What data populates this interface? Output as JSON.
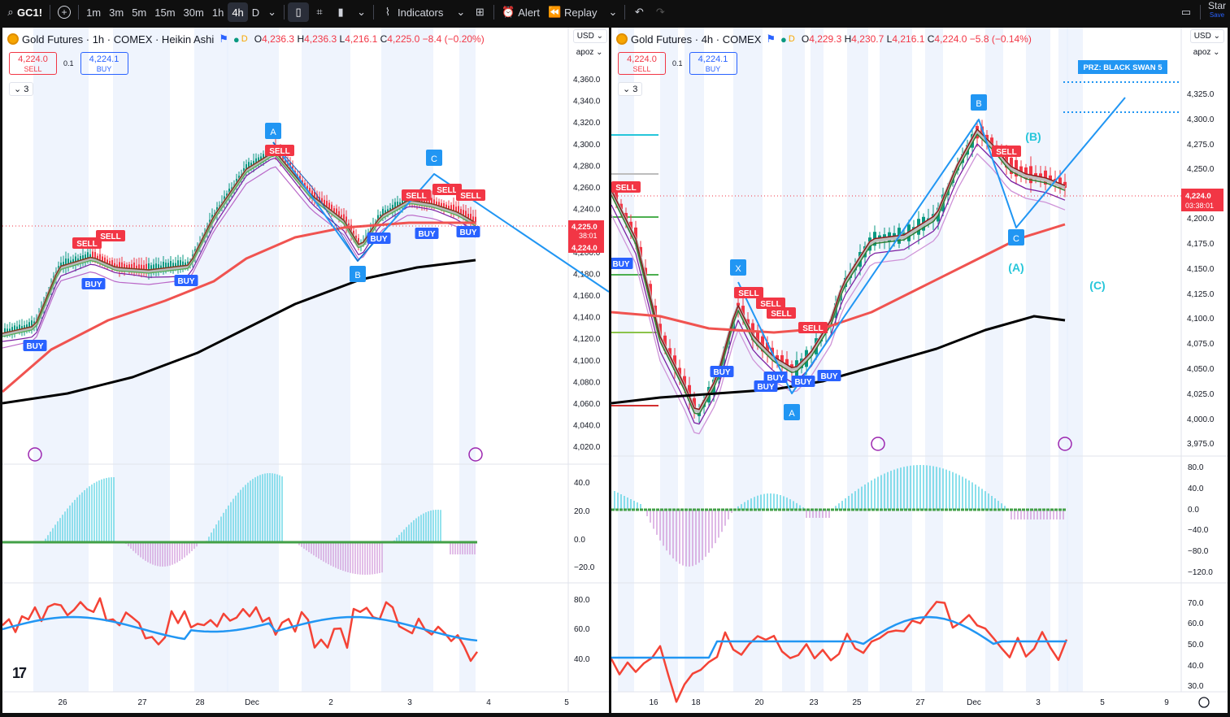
{
  "toolbar": {
    "symbol": "GC1!",
    "intervals": [
      "1m",
      "3m",
      "5m",
      "15m",
      "30m",
      "1h",
      "4h",
      "D"
    ],
    "active_interval": "4h",
    "indicators_label": "Indicators",
    "alert_label": "Alert",
    "replay_label": "Replay",
    "start_label": "Star",
    "save_label": "Save"
  },
  "left": {
    "title": "Gold Futures · 1h · COMEX · Heikin Ashi",
    "ohlc": {
      "o": "4,236.3",
      "h": "4,236.3",
      "l": "4,216.1",
      "c": "4,225.0",
      "chg": "−8.4 (−0.20%)"
    },
    "sell_price": "4,224.0",
    "sell_label": "SELL",
    "buy_price": "4,224.1",
    "buy_label": "BUY",
    "spread": "0.1",
    "collapse_count": "3",
    "currency": "USD",
    "scale_mode": "apoz",
    "price_ticks": [
      "4,360.0",
      "4,340.0",
      "4,320.0",
      "4,300.0",
      "4,280.0",
      "4,260.0",
      "4,240.0",
      "4,220.0",
      "4,200.0",
      "4,180.0",
      "4,160.0",
      "4,140.0",
      "4,120.0",
      "4,100.0",
      "4,080.0",
      "4,060.0",
      "4,040.0",
      "4,020.0"
    ],
    "last_price": "4,225.0",
    "countdown": "38:01",
    "bid_price": "4,224.0",
    "osc1_ticks": [
      "40.0",
      "20.0",
      "0.0",
      "−20.0"
    ],
    "osc2_ticks": [
      "80.0",
      "60.0",
      "40.0"
    ],
    "time_ticks": [
      "26",
      "27",
      "28",
      "Dec",
      "2",
      "3",
      "4",
      "5"
    ],
    "pattern_labels": [
      "A",
      "B",
      "C"
    ],
    "signal_sell": "SELL",
    "signal_buy": "BUY"
  },
  "right": {
    "title": "Gold Futures · 4h · COMEX",
    "ohlc": {
      "o": "4,229.3",
      "h": "4,230.7",
      "l": "4,216.1",
      "c": "4,224.0",
      "chg": "−5.8 (−0.14%)"
    },
    "sell_price": "4,224.0",
    "sell_label": "SELL",
    "buy_price": "4,224.1",
    "buy_label": "BUY",
    "spread": "0.1",
    "collapse_count": "3",
    "currency": "USD",
    "scale_mode": "apoz",
    "price_ticks": [
      "4,325.0",
      "4,300.0",
      "4,275.0",
      "4,250.0",
      "4,200.0",
      "4,175.0",
      "4,150.0",
      "4,125.0",
      "4,100.0",
      "4,075.0",
      "4,050.0",
      "4,025.0",
      "4,000.0",
      "3,975.0"
    ],
    "last_price": "4,224.0",
    "countdown": "03:38:01",
    "osc1_ticks": [
      "80.0",
      "40.0",
      "0.0",
      "−40.0",
      "−80.0",
      "−120.0"
    ],
    "osc2_ticks": [
      "70.0",
      "60.0",
      "50.0",
      "40.0",
      "30.0"
    ],
    "time_ticks": [
      "16",
      "18",
      "20",
      "23",
      "25",
      "27",
      "Dec",
      "3",
      "5",
      "9"
    ],
    "prz_label": "PRZ: BLACK SWAN 5",
    "pattern_labels": [
      "X",
      "A",
      "B",
      "C"
    ],
    "wave_labels": [
      "(A)",
      "(B)",
      "(C)"
    ],
    "signal_sell": "SELL",
    "signal_buy": "BUY"
  },
  "colors": {
    "up": "#089981",
    "down": "#f23645",
    "blue": "#2196f3",
    "ema_red": "#f05350",
    "ema_black": "#000000"
  }
}
